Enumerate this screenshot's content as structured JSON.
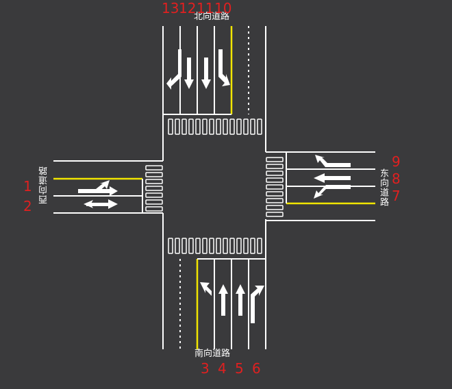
{
  "roads": {
    "north": "北向道路",
    "south": "南向道路",
    "east": "东向道路",
    "west": "西向道路"
  },
  "lane_numbers": {
    "west": [
      "1",
      "2"
    ],
    "south": [
      "3",
      "4",
      "5",
      "6"
    ],
    "east": [
      "7",
      "8",
      "9"
    ],
    "north": [
      "10",
      "11",
      "12",
      "13"
    ]
  },
  "colors": {
    "background": "#3a3a3c",
    "marking": "#ffffff",
    "center_line": "#f2e600",
    "lane_number": "#e02020"
  },
  "icons": {
    "north_lanes": [
      "left-u-turn-arrow",
      "straight-arrow",
      "straight-arrow",
      "right-turn-arrow"
    ],
    "south_lanes": [
      "left-turn-arrow",
      "straight-arrow",
      "straight-arrow",
      "right-turn-arrow"
    ],
    "east_lanes": [
      "left-turn-arrow",
      "straight-arrow",
      "right-turn-arrow"
    ],
    "west_lanes": [
      "straight-left-arrow",
      "straight-uturn-arrow"
    ]
  }
}
